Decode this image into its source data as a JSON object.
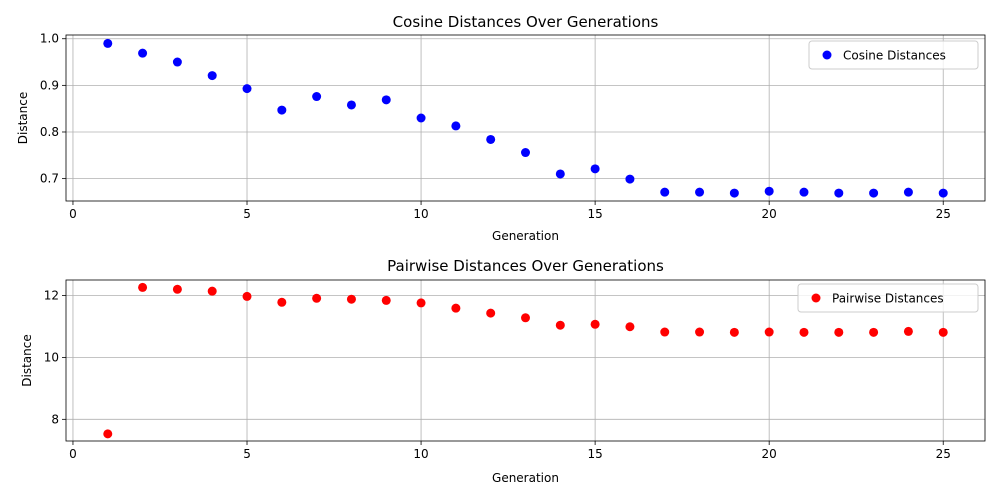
{
  "chart_data": [
    {
      "type": "scatter",
      "title": "Cosine Distances Over Generations",
      "xlabel": "Generation",
      "ylabel": "Distance",
      "xlim": [
        -0.2,
        26.2
      ],
      "ylim": [
        0.652,
        1.008
      ],
      "xticks": [
        0,
        5,
        10,
        15,
        20,
        25
      ],
      "yticks": [
        0.7,
        0.8,
        0.9,
        1.0
      ],
      "ytick_labels": [
        "0.7",
        "0.8",
        "0.9",
        "1.0"
      ],
      "grid": true,
      "legend_position": "top-right",
      "series": [
        {
          "name": "Cosine Distances",
          "color": "#0000ff",
          "x": [
            1,
            2,
            3,
            4,
            5,
            6,
            7,
            8,
            9,
            10,
            11,
            12,
            13,
            14,
            15,
            16,
            17,
            18,
            19,
            20,
            21,
            22,
            23,
            24,
            25
          ],
          "y": [
            0.99,
            0.969,
            0.95,
            0.921,
            0.893,
            0.847,
            0.876,
            0.858,
            0.869,
            0.83,
            0.813,
            0.784,
            0.756,
            0.71,
            0.721,
            0.699,
            0.671,
            0.671,
            0.669,
            0.673,
            0.671,
            0.669,
            0.669,
            0.671,
            0.669
          ]
        }
      ]
    },
    {
      "type": "scatter",
      "title": "Pairwise Distances Over Generations",
      "xlabel": "Generation",
      "ylabel": "Distance",
      "xlim": [
        -0.2,
        26.2
      ],
      "ylim": [
        7.3,
        12.5
      ],
      "xticks": [
        0,
        5,
        10,
        15,
        20,
        25
      ],
      "yticks": [
        8,
        10,
        12
      ],
      "ytick_labels": [
        "8",
        "10",
        "12"
      ],
      "grid": true,
      "legend_position": "top-right",
      "series": [
        {
          "name": "Pairwise Distances",
          "color": "#ff0000",
          "x": [
            1,
            2,
            3,
            4,
            5,
            6,
            7,
            8,
            9,
            10,
            11,
            12,
            13,
            14,
            15,
            16,
            17,
            18,
            19,
            20,
            21,
            22,
            23,
            24,
            25
          ],
          "y": [
            7.53,
            12.26,
            12.2,
            12.14,
            11.97,
            11.78,
            11.91,
            11.88,
            11.84,
            11.76,
            11.59,
            11.43,
            11.28,
            11.04,
            11.07,
            10.99,
            10.82,
            10.82,
            10.81,
            10.82,
            10.81,
            10.81,
            10.81,
            10.84,
            10.81
          ]
        }
      ]
    }
  ]
}
